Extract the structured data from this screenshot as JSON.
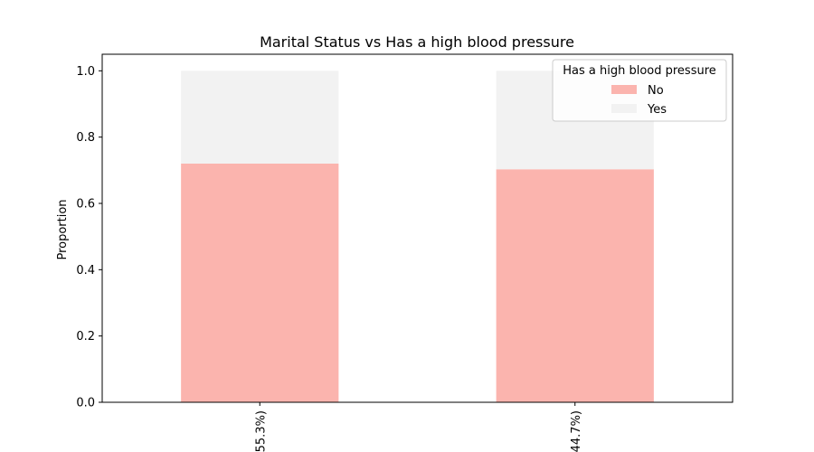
{
  "chart_data": {
    "type": "bar",
    "stacked": true,
    "title": "Marital Status vs Has a high blood pressure",
    "xlabel": "",
    "ylabel": "Proportion",
    "ylim": [
      0,
      1.05
    ],
    "yticks": [
      "0.0",
      "0.2",
      "0.4",
      "0.6",
      "0.8",
      "1.0"
    ],
    "categories": [
      "…(55.3%)",
      "…(44.7%)"
    ],
    "series": [
      {
        "name": "No",
        "values": [
          0.72,
          0.703
        ],
        "color": "#fbb4ae"
      },
      {
        "name": "Yes",
        "values": [
          0.28,
          0.297
        ],
        "color": "#f2f2f2"
      }
    ],
    "legend": {
      "title": "Has a high blood pressure",
      "position": "top-right"
    },
    "grid": false
  }
}
